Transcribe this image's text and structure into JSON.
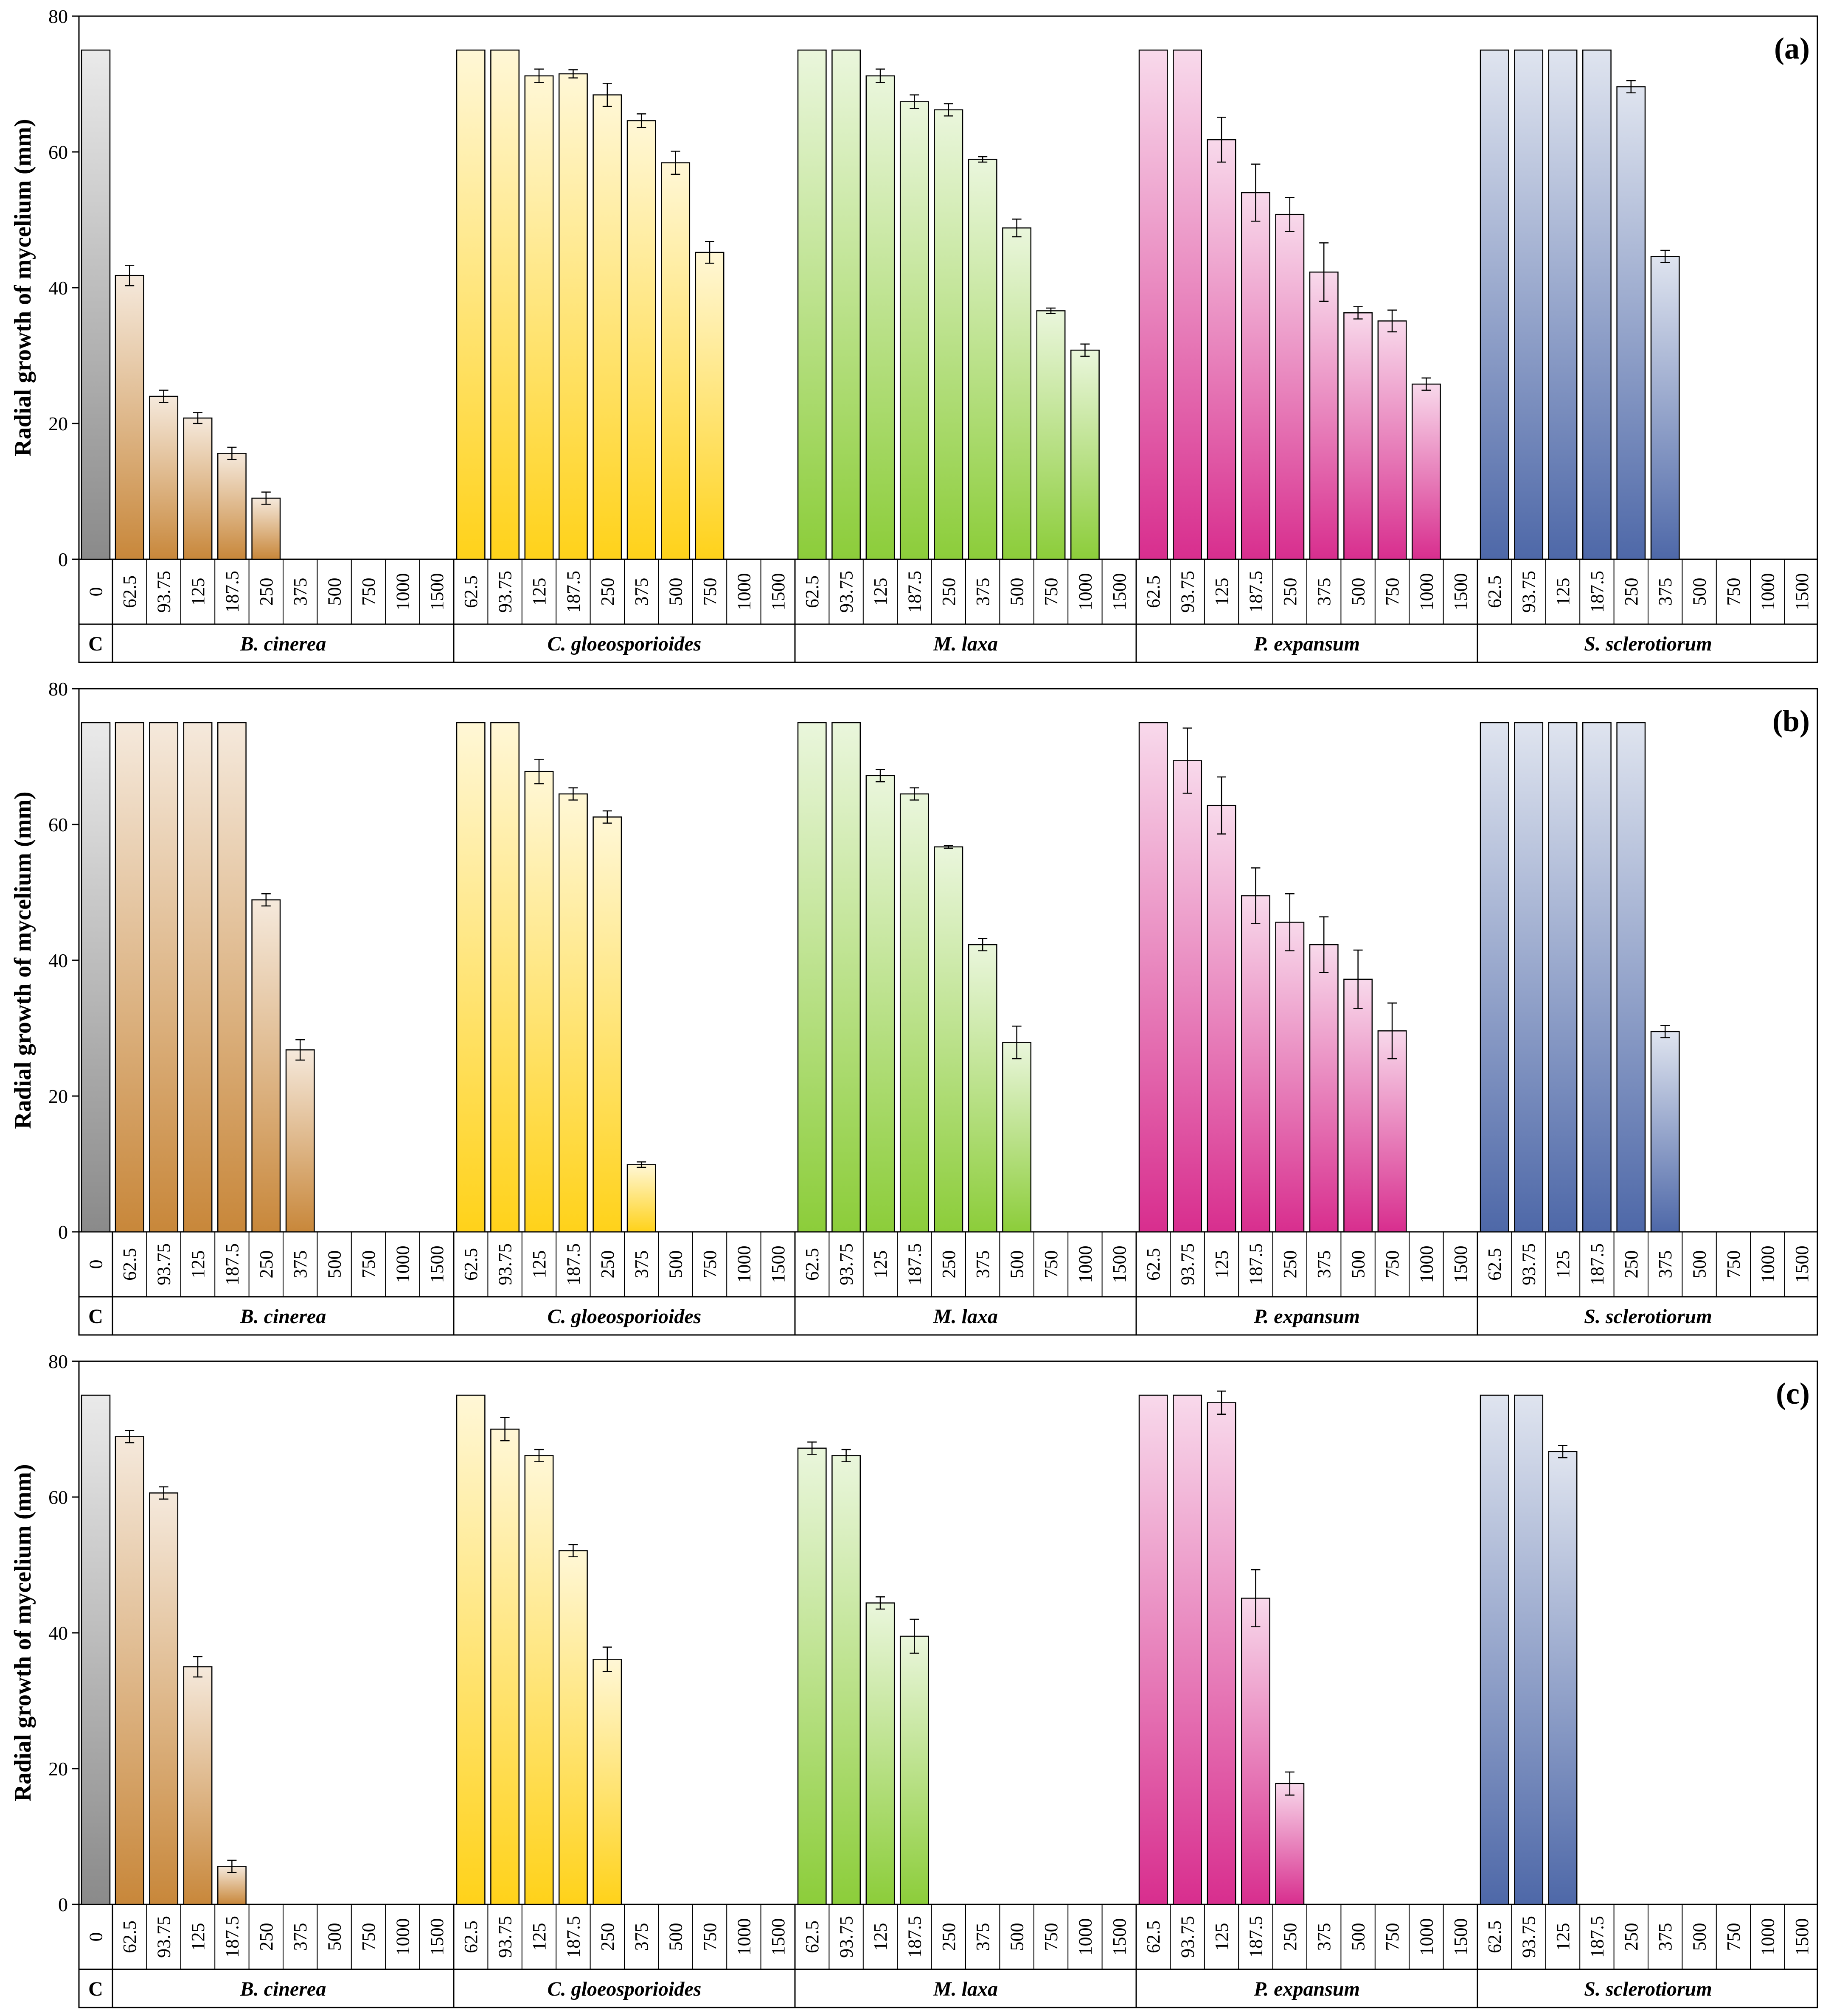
{
  "colors": {
    "control": "#8a8a8a",
    "B. cinerea": "#c8873a",
    "C. gloeosporioides": "#ffd21a",
    "M. laxa": "#8ccd3a",
    "P. expansum": "#d82e8e",
    "S. sclerotiorum": "#4e68a8"
  },
  "chart_data": [
    {
      "type": "bar",
      "panel": "(a)",
      "ylabel": "Radial growth of mycelium (mm)",
      "ylim": [
        0,
        80
      ],
      "yticks": [
        0,
        20,
        40,
        60,
        80
      ],
      "control": {
        "label": "C",
        "dose": "0",
        "value": 75,
        "error": 0
      },
      "groups": [
        {
          "name": "B. cinerea",
          "doses": [
            "62.5",
            "93.75",
            "125",
            "187.5",
            "250",
            "375",
            "500",
            "750",
            "1000",
            "1500"
          ],
          "values": [
            41.8,
            24.0,
            20.8,
            15.6,
            9.0,
            0,
            0,
            0,
            0,
            0
          ],
          "errors": [
            1.5,
            0.9,
            0.8,
            0.9,
            0.9,
            0,
            0,
            0,
            0,
            0
          ]
        },
        {
          "name": "C. gloeosporioides",
          "doses": [
            "62.5",
            "93.75",
            "125",
            "187.5",
            "250",
            "375",
            "500",
            "750",
            "1000",
            "1500"
          ],
          "values": [
            75,
            75,
            71.2,
            71.5,
            68.4,
            64.6,
            58.4,
            45.2,
            0,
            0
          ],
          "errors": [
            0,
            0,
            1.0,
            0.6,
            1.7,
            1.0,
            1.7,
            1.6,
            0,
            0
          ]
        },
        {
          "name": "M. laxa",
          "doses": [
            "62.5",
            "93.75",
            "125",
            "187.5",
            "250",
            "375",
            "500",
            "750",
            "1000",
            "1500"
          ],
          "values": [
            75,
            75,
            71.2,
            67.4,
            66.2,
            58.9,
            48.8,
            36.6,
            30.8,
            0
          ],
          "errors": [
            0,
            0,
            1.0,
            1.0,
            0.9,
            0.4,
            1.3,
            0.4,
            0.9,
            0
          ]
        },
        {
          "name": "P. expansum",
          "doses": [
            "62.5",
            "93.75",
            "125",
            "187.5",
            "250",
            "375",
            "500",
            "750",
            "1000",
            "1500"
          ],
          "values": [
            75,
            75,
            61.8,
            54.0,
            50.8,
            42.3,
            36.3,
            35.1,
            25.8,
            0
          ],
          "errors": [
            0,
            0,
            3.3,
            4.2,
            2.5,
            4.3,
            0.9,
            1.6,
            0.9,
            0
          ]
        },
        {
          "name": "S. sclerotiorum",
          "doses": [
            "62.5",
            "93.75",
            "125",
            "187.5",
            "250",
            "375",
            "500",
            "750",
            "1000",
            "1500"
          ],
          "values": [
            75,
            75,
            75,
            75,
            69.6,
            44.6,
            0,
            0,
            0,
            0
          ],
          "errors": [
            0,
            0,
            0,
            0,
            0.9,
            0.9,
            0,
            0,
            0,
            0
          ]
        }
      ]
    },
    {
      "type": "bar",
      "panel": "(b)",
      "ylabel": "Radial growth of mycelium (mm)",
      "ylim": [
        0,
        80
      ],
      "yticks": [
        0,
        20,
        40,
        60,
        80
      ],
      "control": {
        "label": "C",
        "dose": "0",
        "value": 75,
        "error": 0
      },
      "groups": [
        {
          "name": "B. cinerea",
          "doses": [
            "62.5",
            "93.75",
            "125",
            "187.5",
            "250",
            "375",
            "500",
            "750",
            "1000",
            "1500"
          ],
          "values": [
            75,
            75,
            75,
            75,
            48.9,
            26.8,
            0,
            0,
            0,
            0
          ],
          "errors": [
            0,
            0,
            0,
            0,
            0.9,
            1.5,
            0,
            0,
            0,
            0
          ]
        },
        {
          "name": "C. gloeosporioides",
          "doses": [
            "62.5",
            "93.75",
            "125",
            "187.5",
            "250",
            "375",
            "500",
            "750",
            "1000",
            "1500"
          ],
          "values": [
            75,
            75,
            67.8,
            64.5,
            61.1,
            9.9,
            0,
            0,
            0,
            0
          ],
          "errors": [
            0,
            0,
            1.8,
            0.9,
            0.9,
            0.4,
            0,
            0,
            0,
            0
          ]
        },
        {
          "name": "M. laxa",
          "doses": [
            "62.5",
            "93.75",
            "125",
            "187.5",
            "250",
            "375",
            "500",
            "750",
            "1000",
            "1500"
          ],
          "values": [
            75,
            75,
            67.2,
            64.5,
            56.7,
            42.3,
            27.9,
            0,
            0,
            0
          ],
          "errors": [
            0,
            0,
            0.9,
            0.9,
            0.2,
            0.9,
            2.4,
            0,
            0,
            0
          ]
        },
        {
          "name": "P. expansum",
          "doses": [
            "62.5",
            "93.75",
            "125",
            "187.5",
            "250",
            "375",
            "500",
            "750",
            "1000",
            "1500"
          ],
          "values": [
            75,
            69.4,
            62.8,
            49.5,
            45.6,
            42.3,
            37.2,
            29.6,
            0,
            0
          ],
          "errors": [
            0,
            4.8,
            4.2,
            4.1,
            4.2,
            4.1,
            4.3,
            4.1,
            0,
            0
          ]
        },
        {
          "name": "S. sclerotiorum",
          "doses": [
            "62.5",
            "93.75",
            "125",
            "187.5",
            "250",
            "375",
            "500",
            "750",
            "1000",
            "1500"
          ],
          "values": [
            75,
            75,
            75,
            75,
            75,
            29.5,
            0,
            0,
            0,
            0
          ],
          "errors": [
            0,
            0,
            0,
            0,
            0,
            0.9,
            0,
            0,
            0,
            0
          ]
        }
      ]
    },
    {
      "type": "bar",
      "panel": "(c)",
      "ylabel": "Radial growth of mycelium (mm)",
      "ylim": [
        0,
        80
      ],
      "yticks": [
        0,
        20,
        40,
        60,
        80
      ],
      "control": {
        "label": "C",
        "dose": "0",
        "value": 75,
        "error": 0
      },
      "groups": [
        {
          "name": "B. cinerea",
          "doses": [
            "62.5",
            "93.75",
            "125",
            "187.5",
            "250",
            "375",
            "500",
            "750",
            "1000",
            "1500"
          ],
          "values": [
            68.9,
            60.6,
            35.0,
            5.6,
            0,
            0,
            0,
            0,
            0,
            0
          ],
          "errors": [
            0.9,
            0.9,
            1.5,
            0.9,
            0,
            0,
            0,
            0,
            0,
            0
          ]
        },
        {
          "name": "C. gloeosporioides",
          "doses": [
            "62.5",
            "93.75",
            "125",
            "187.5",
            "250",
            "375",
            "500",
            "750",
            "1000",
            "1500"
          ],
          "values": [
            75,
            70.0,
            66.1,
            52.1,
            36.1,
            0,
            0,
            0,
            0,
            0
          ],
          "errors": [
            0,
            1.7,
            0.9,
            0.9,
            1.8,
            0,
            0,
            0,
            0,
            0
          ]
        },
        {
          "name": "M. laxa",
          "doses": [
            "62.5",
            "93.75",
            "125",
            "187.5",
            "250",
            "375",
            "500",
            "750",
            "1000",
            "1500"
          ],
          "values": [
            67.2,
            66.1,
            44.4,
            39.5,
            0,
            0,
            0,
            0,
            0,
            0
          ],
          "errors": [
            0.9,
            0.9,
            0.9,
            2.5,
            0,
            0,
            0,
            0,
            0,
            0
          ]
        },
        {
          "name": "P. expansum",
          "doses": [
            "62.5",
            "93.75",
            "125",
            "187.5",
            "250",
            "375",
            "500",
            "750",
            "1000",
            "1500"
          ],
          "values": [
            75,
            75,
            73.9,
            45.1,
            17.8,
            0,
            0,
            0,
            0,
            0
          ],
          "errors": [
            0,
            0,
            1.7,
            4.2,
            1.7,
            0,
            0,
            0,
            0,
            0
          ]
        },
        {
          "name": "S. sclerotiorum",
          "doses": [
            "62.5",
            "93.75",
            "125",
            "187.5",
            "250",
            "375",
            "500",
            "750",
            "1000",
            "1500"
          ],
          "values": [
            75,
            75,
            66.7,
            0,
            0,
            0,
            0,
            0,
            0,
            0
          ],
          "errors": [
            0,
            0,
            0.9,
            0,
            0,
            0,
            0,
            0,
            0,
            0
          ]
        }
      ]
    }
  ]
}
